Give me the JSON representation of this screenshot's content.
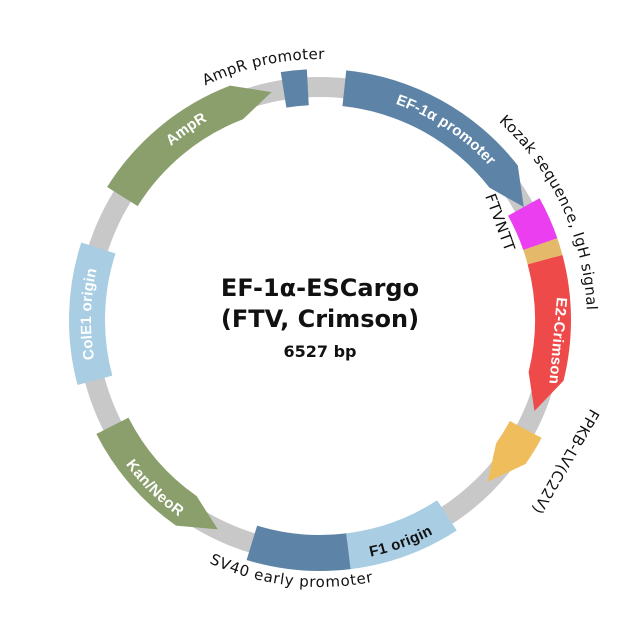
{
  "plasmid": {
    "name_line1": "EF-1α-ESCargo",
    "name_line2": "(FTV, Crimson)",
    "size": "6527 bp"
  },
  "features": [
    {
      "id": "ef1a-promoter",
      "label": "EF-1α promoter",
      "type": "promoter",
      "start_deg": 6,
      "end_deg": 61,
      "color": "#5d84a6",
      "arrow": "cw",
      "label_placement": "inside"
    },
    {
      "id": "kozak-igh",
      "label": "Kozak sequence, IgH signal",
      "type": "signal",
      "start_deg": 61,
      "end_deg": 71,
      "color": "#ea3ef0",
      "arrow": "none",
      "label_placement": "outside"
    },
    {
      "id": "ftvntt",
      "label": "FTVNTT",
      "type": "tag",
      "start_deg": 71,
      "end_deg": 75,
      "color": "#e5b96a",
      "arrow": "none",
      "label_placement": "inner-radial"
    },
    {
      "id": "e2-crimson",
      "label": "E2-Crimson",
      "type": "cds",
      "start_deg": 75,
      "end_deg": 113,
      "color": "#ef4a4a",
      "arrow": "cw",
      "label_placement": "inside-radial"
    },
    {
      "id": "fkbp",
      "label": "FPKB-LV(C22V)",
      "type": "cds",
      "start_deg": 118,
      "end_deg": 134,
      "color": "#f0bd5c",
      "arrow": "cw",
      "label_placement": "outside-radial"
    },
    {
      "id": "f1-origin",
      "label": "F1 origin",
      "type": "origin",
      "start_deg": 147,
      "end_deg": 173,
      "color": "#a9cde3",
      "arrow": "none",
      "label_placement": "inside"
    },
    {
      "id": "sv40-promoter",
      "label": "SV40 early promoter",
      "type": "promoter",
      "start_deg": 173,
      "end_deg": 197,
      "color": "#5d84a6",
      "arrow": "none",
      "label_placement": "outside"
    },
    {
      "id": "kan-neor",
      "label": "Kan/NeoR",
      "type": "cds",
      "start_deg": 206,
      "end_deg": 243,
      "color": "#8a9f6c",
      "arrow": "ccw",
      "label_placement": "inside"
    },
    {
      "id": "cole1-origin",
      "label": "ColE1 origin",
      "type": "origin",
      "start_deg": 255,
      "end_deg": 288,
      "color": "#a9cde3",
      "arrow": "none",
      "label_placement": "inside"
    },
    {
      "id": "ampr",
      "label": "AmpR",
      "type": "cds",
      "start_deg": 302,
      "end_deg": 348,
      "color": "#8a9f6c",
      "arrow": "cw",
      "label_placement": "inside"
    },
    {
      "id": "ampr-promoter",
      "label": "AmpR promoter",
      "type": "promoter",
      "start_deg": 351,
      "end_deg": 357,
      "color": "#5d84a6",
      "arrow": "none",
      "label_placement": "outside"
    }
  ],
  "backbone_color": "#c8c8c8"
}
